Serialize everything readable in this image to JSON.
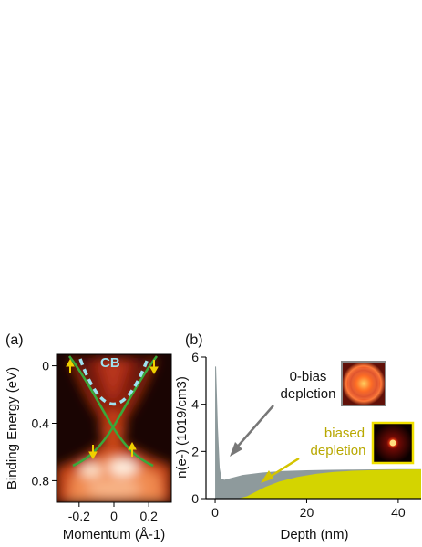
{
  "figure": {
    "panel_a": {
      "label": "(a)",
      "band_label": "CB",
      "colors": {
        "map_dark": "#1a0503",
        "map_mid": "#c8401a",
        "map_bright": "#ffe8c8",
        "dirac_bands": "#3aa83a",
        "cb_dashed": "#9fe3f0",
        "spin_arrows": "#f0d000"
      }
    },
    "panel_b": {
      "label": "(b)",
      "annotation_zero_bias": [
        "0-bias",
        "depletion"
      ],
      "annotation_biased": [
        "biased",
        "depletion"
      ],
      "colors": {
        "zero_bias_fill": "#8e9a9c",
        "biased_fill": "#d4d400",
        "biased_text": "#b8a800",
        "inset_border_biased": "#f0e000",
        "inset_border_zero": "#888888"
      }
    }
  },
  "chart_data": [
    {
      "type": "heatmap",
      "xlabel": "Momentum (Å-1)",
      "ylabel": "Binding Energy (eV)",
      "xlim": [
        -0.33,
        0.33
      ],
      "ylim": [
        0.95,
        -0.08
      ],
      "xticks": [
        "-0.2",
        "0",
        "0.2"
      ],
      "xtick_values": [
        -0.2,
        0,
        0.2
      ],
      "yticks": [
        "0",
        "0.4",
        "0.8"
      ],
      "ytick_values": [
        0,
        0.4,
        0.8
      ]
    },
    {
      "type": "area",
      "xlabel": "Depth (nm)",
      "ylabel": "n(e-) (1019/cm3)",
      "xlim": [
        -2,
        45
      ],
      "ylim": [
        0,
        6
      ],
      "xticks": [
        "0",
        "20",
        "40"
      ],
      "xtick_values": [
        0,
        20,
        40
      ],
      "yticks": [
        "0",
        "2",
        "4",
        "6"
      ],
      "ytick_values": [
        0,
        2,
        4,
        6
      ],
      "series": [
        {
          "x": [
            0,
            0.2,
            0.6,
            1.0,
            1.4,
            2,
            4,
            6,
            8,
            10,
            12,
            15,
            20,
            25,
            30,
            35,
            40,
            45
          ],
          "y": [
            5.6,
            5.6,
            3.0,
            1.3,
            0.85,
            0.8,
            0.9,
            1.0,
            1.05,
            1.1,
            1.13,
            1.17,
            1.2,
            1.22,
            1.23,
            1.24,
            1.25,
            1.25
          ]
        },
        {
          "x": [
            0,
            3,
            5,
            7,
            9,
            11,
            14,
            18,
            22,
            26,
            30,
            35,
            40,
            45
          ],
          "y": [
            0,
            0,
            0,
            0.1,
            0.3,
            0.5,
            0.72,
            0.92,
            1.05,
            1.13,
            1.18,
            1.21,
            1.23,
            1.24
          ]
        }
      ]
    }
  ]
}
